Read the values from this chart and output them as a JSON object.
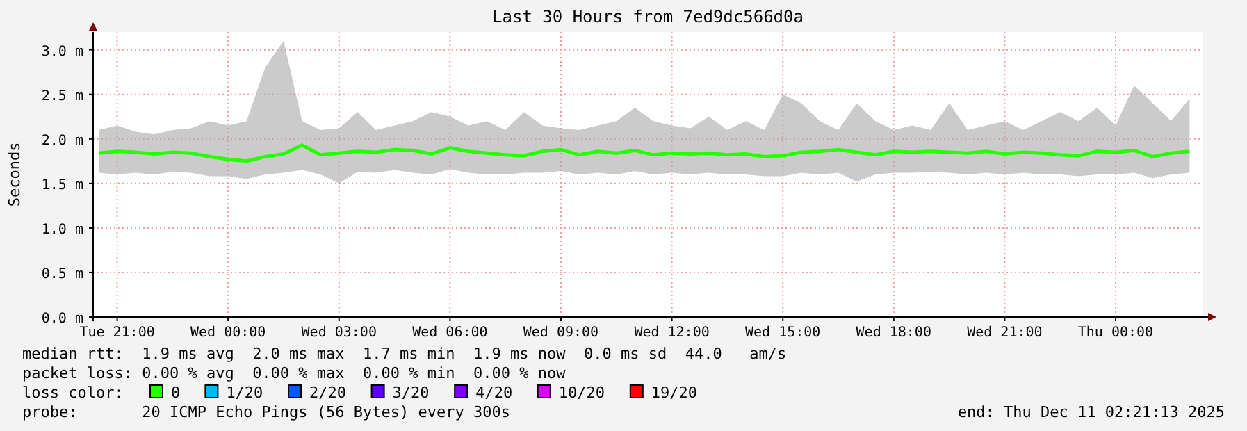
{
  "chart_data": {
    "type": "line",
    "title": "Last 30 Hours from 7ed9dc566d0a",
    "ylabel": "Seconds",
    "x": [
      "2025-12-09T20:30",
      "2025-12-09T21:00",
      "2025-12-09T21:30",
      "2025-12-09T22:00",
      "2025-12-09T22:30",
      "2025-12-09T23:00",
      "2025-12-09T23:30",
      "2025-12-10T00:00",
      "2025-12-10T00:30",
      "2025-12-10T01:00",
      "2025-12-10T01:30",
      "2025-12-10T02:00",
      "2025-12-10T02:30",
      "2025-12-10T03:00",
      "2025-12-10T03:30",
      "2025-12-10T04:00",
      "2025-12-10T04:30",
      "2025-12-10T05:00",
      "2025-12-10T05:30",
      "2025-12-10T06:00",
      "2025-12-10T06:30",
      "2025-12-10T07:00",
      "2025-12-10T07:30",
      "2025-12-10T08:00",
      "2025-12-10T08:30",
      "2025-12-10T09:00",
      "2025-12-10T09:30",
      "2025-12-10T10:00",
      "2025-12-10T10:30",
      "2025-12-10T11:00",
      "2025-12-10T11:30",
      "2025-12-10T12:00",
      "2025-12-10T12:30",
      "2025-12-10T13:00",
      "2025-12-10T13:30",
      "2025-12-10T14:00",
      "2025-12-10T14:30",
      "2025-12-10T15:00",
      "2025-12-10T15:30",
      "2025-12-10T16:00",
      "2025-12-10T16:30",
      "2025-12-10T17:00",
      "2025-12-10T17:30",
      "2025-12-10T18:00",
      "2025-12-10T18:30",
      "2025-12-10T19:00",
      "2025-12-10T19:30",
      "2025-12-10T20:00",
      "2025-12-10T20:30",
      "2025-12-10T21:00",
      "2025-12-10T21:30",
      "2025-12-10T22:00",
      "2025-12-10T22:30",
      "2025-12-10T23:00",
      "2025-12-10T23:30",
      "2025-12-11T00:00",
      "2025-12-11T00:30",
      "2025-12-11T01:00",
      "2025-12-11T01:30",
      "2025-12-11T02:00"
    ],
    "series": [
      {
        "name": "0",
        "color": "#26ff00",
        "values": [
          1.84,
          1.86,
          1.85,
          1.83,
          1.85,
          1.84,
          1.8,
          1.77,
          1.75,
          1.8,
          1.83,
          1.93,
          1.82,
          1.84,
          1.86,
          1.85,
          1.88,
          1.87,
          1.83,
          1.9,
          1.86,
          1.84,
          1.82,
          1.81,
          1.86,
          1.88,
          1.82,
          1.86,
          1.84,
          1.87,
          1.82,
          1.84,
          1.83,
          1.84,
          1.82,
          1.83,
          1.8,
          1.81,
          1.85,
          1.86,
          1.88,
          1.85,
          1.82,
          1.86,
          1.85,
          1.86,
          1.85,
          1.84,
          1.86,
          1.83,
          1.85,
          1.84,
          1.82,
          1.81,
          1.86,
          1.85,
          1.87,
          1.8,
          1.84,
          1.86
        ],
        "lower": [
          1.62,
          1.6,
          1.62,
          1.6,
          1.63,
          1.62,
          1.58,
          1.58,
          1.55,
          1.6,
          1.62,
          1.65,
          1.6,
          1.5,
          1.63,
          1.62,
          1.65,
          1.62,
          1.6,
          1.66,
          1.62,
          1.6,
          1.6,
          1.62,
          1.62,
          1.64,
          1.6,
          1.62,
          1.6,
          1.64,
          1.6,
          1.62,
          1.6,
          1.62,
          1.6,
          1.6,
          1.58,
          1.58,
          1.62,
          1.6,
          1.62,
          1.52,
          1.6,
          1.62,
          1.62,
          1.63,
          1.62,
          1.6,
          1.62,
          1.6,
          1.62,
          1.6,
          1.6,
          1.58,
          1.6,
          1.6,
          1.62,
          1.56,
          1.6,
          1.62
        ],
        "upper": [
          2.1,
          2.15,
          2.08,
          2.05,
          2.1,
          2.12,
          2.2,
          2.15,
          2.2,
          2.8,
          3.1,
          2.2,
          2.1,
          2.12,
          2.3,
          2.1,
          2.15,
          2.2,
          2.3,
          2.25,
          2.15,
          2.2,
          2.1,
          2.3,
          2.15,
          2.12,
          2.1,
          2.15,
          2.2,
          2.35,
          2.2,
          2.15,
          2.12,
          2.25,
          2.1,
          2.2,
          2.1,
          2.5,
          2.4,
          2.2,
          2.1,
          2.4,
          2.2,
          2.1,
          2.15,
          2.1,
          2.4,
          2.1,
          2.15,
          2.2,
          2.1,
          2.2,
          2.3,
          2.2,
          2.35,
          2.15,
          2.6,
          2.4,
          2.2,
          2.45
        ]
      },
      {
        "name": "1/20",
        "color": "#00b8ff",
        "values": [
          null,
          null,
          null,
          null,
          null,
          null,
          null,
          null,
          null,
          null,
          null,
          null,
          null,
          null,
          null,
          null,
          null,
          null,
          null,
          null,
          null,
          null,
          null,
          null,
          null,
          null,
          null,
          null,
          null,
          null,
          null,
          null,
          null,
          null,
          null,
          null,
          null,
          null,
          null,
          null,
          null,
          null,
          null,
          null,
          null,
          null,
          null,
          null,
          null,
          null,
          null,
          null,
          null,
          null,
          null,
          null,
          null,
          null,
          null,
          null
        ]
      },
      {
        "name": "2/20",
        "color": "#0059ff",
        "values": [
          null,
          null,
          null,
          null,
          null,
          null,
          null,
          null,
          null,
          null,
          null,
          null,
          null,
          null,
          null,
          null,
          null,
          null,
          null,
          null,
          null,
          null,
          null,
          null,
          null,
          null,
          null,
          null,
          null,
          null,
          null,
          null,
          null,
          null,
          null,
          null,
          null,
          null,
          null,
          null,
          null,
          null,
          null,
          null,
          null,
          null,
          null,
          null,
          null,
          null,
          null,
          null,
          null,
          null,
          null,
          null,
          null,
          null,
          null,
          null
        ]
      },
      {
        "name": "3/20",
        "color": "#5e00ff",
        "values": [
          null,
          null,
          null,
          null,
          null,
          null,
          null,
          null,
          null,
          null,
          null,
          null,
          null,
          null,
          null,
          null,
          null,
          null,
          null,
          null,
          null,
          null,
          null,
          null,
          null,
          null,
          null,
          null,
          null,
          null,
          null,
          null,
          null,
          null,
          null,
          null,
          null,
          null,
          null,
          null,
          null,
          null,
          null,
          null,
          null,
          null,
          null,
          null,
          null,
          null,
          null,
          null,
          null,
          null,
          null,
          null,
          null,
          null,
          null,
          null
        ]
      },
      {
        "name": "4/20",
        "color": "#7e00ff",
        "values": [
          null,
          null,
          null,
          null,
          null,
          null,
          null,
          null,
          null,
          null,
          null,
          null,
          null,
          null,
          null,
          null,
          null,
          null,
          null,
          null,
          null,
          null,
          null,
          null,
          null,
          null,
          null,
          null,
          null,
          null,
          null,
          null,
          null,
          null,
          null,
          null,
          null,
          null,
          null,
          null,
          null,
          null,
          null,
          null,
          null,
          null,
          null,
          null,
          null,
          null,
          null,
          null,
          null,
          null,
          null,
          null,
          null,
          null,
          null,
          null
        ]
      },
      {
        "name": "10/20",
        "color": "#dd00ff",
        "values": [
          null,
          null,
          null,
          null,
          null,
          null,
          null,
          null,
          null,
          null,
          null,
          null,
          null,
          null,
          null,
          null,
          null,
          null,
          null,
          null,
          null,
          null,
          null,
          null,
          null,
          null,
          null,
          null,
          null,
          null,
          null,
          null,
          null,
          null,
          null,
          null,
          null,
          null,
          null,
          null,
          null,
          null,
          null,
          null,
          null,
          null,
          null,
          null,
          null,
          null,
          null,
          null,
          null,
          null,
          null,
          null,
          null,
          null,
          null,
          null
        ]
      },
      {
        "name": "19/20",
        "color": "#ff0000",
        "values": [
          null,
          null,
          null,
          null,
          null,
          null,
          null,
          null,
          null,
          null,
          null,
          null,
          null,
          null,
          null,
          null,
          null,
          null,
          null,
          null,
          null,
          null,
          null,
          null,
          null,
          null,
          null,
          null,
          null,
          null,
          null,
          null,
          null,
          null,
          null,
          null,
          null,
          null,
          null,
          null,
          null,
          null,
          null,
          null,
          null,
          null,
          null,
          null,
          null,
          null,
          null,
          null,
          null,
          null,
          null,
          null,
          null,
          null,
          null,
          null
        ]
      }
    ],
    "legend": "bottom",
    "legend_title": "loss color:",
    "xlim": [
      "2025-12-09T20:21",
      "2025-12-11T02:21"
    ],
    "xticks": [
      {
        "value": "2025-12-09T21:00",
        "label": "Tue 21:00"
      },
      {
        "value": "2025-12-10T00:00",
        "label": "Wed 00:00"
      },
      {
        "value": "2025-12-10T03:00",
        "label": "Wed 03:00"
      },
      {
        "value": "2025-12-10T06:00",
        "label": "Wed 06:00"
      },
      {
        "value": "2025-12-10T09:00",
        "label": "Wed 09:00"
      },
      {
        "value": "2025-12-10T12:00",
        "label": "Wed 12:00"
      },
      {
        "value": "2025-12-10T15:00",
        "label": "Wed 15:00"
      },
      {
        "value": "2025-12-10T18:00",
        "label": "Wed 18:00"
      },
      {
        "value": "2025-12-10T21:00",
        "label": "Wed 21:00"
      },
      {
        "value": "2025-12-11T00:00",
        "label": "Thu 00:00"
      }
    ],
    "ylim": [
      0,
      3.2
    ],
    "yticks": [
      {
        "value": 0,
        "label": "0.0 m"
      },
      {
        "value": 0.5,
        "label": "0.5 m"
      },
      {
        "value": 1,
        "label": "1.0 m"
      },
      {
        "value": 1.5,
        "label": "1.5 m"
      },
      {
        "value": 2,
        "label": "2.0 m"
      },
      {
        "value": 2.5,
        "label": "2.5 m"
      },
      {
        "value": 3,
        "label": "3.0 m"
      }
    ],
    "grid": true,
    "annotations": [
      "median rtt:  1.9 ms avg  2.0 ms max  1.7 ms min  1.9 ms now  0.0 ms sd  44.0   am/s",
      "packet loss: 0.00 % avg  0.00 % max  0.00 % min  0.00 % now",
      "probe:       20 ICMP Echo Pings (56 Bytes) every 300s",
      "end: Thu Dec 11 02:21:13 2025"
    ]
  }
}
